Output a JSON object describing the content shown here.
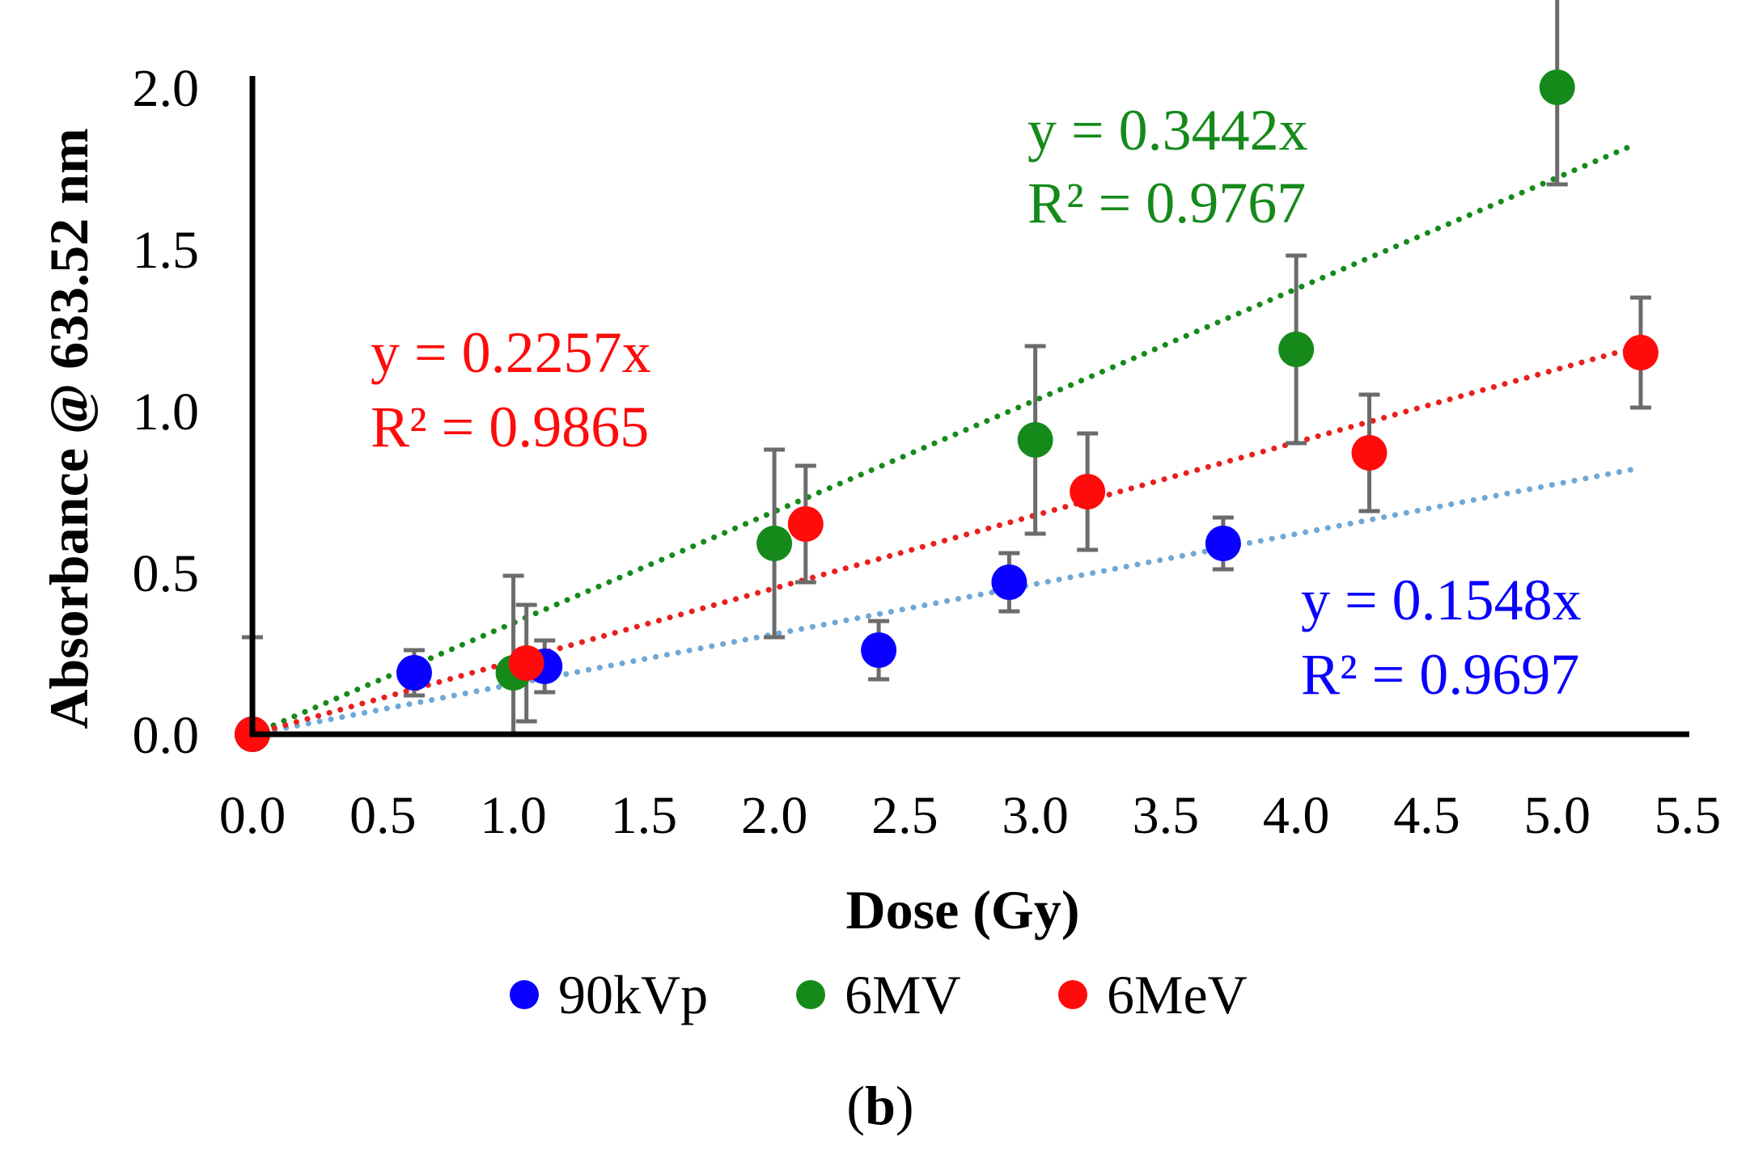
{
  "chart_data": {
    "type": "scatter",
    "xlabel": "Dose (Gy)",
    "ylabel": "Absorbance @ 633.52 nm",
    "xlim": [
      0.0,
      5.5
    ],
    "ylim": [
      0.0,
      2.0
    ],
    "x_ticks": [
      "0.0",
      "0.5",
      "1.0",
      "1.5",
      "2.0",
      "2.5",
      "3.0",
      "3.5",
      "4.0",
      "4.5",
      "5.0",
      "5.5"
    ],
    "y_ticks": [
      "0.0",
      "0.5",
      "1.0",
      "1.5",
      "2.0"
    ],
    "legend_position": "bottom",
    "panel_label": {
      "open": "(",
      "letter": "b",
      "close": ")"
    },
    "series": [
      {
        "name": "90kVp",
        "color": "#0a00ff",
        "trend_color": "#6fa8d6",
        "trend_slope": 0.1548,
        "trend_x_end": 5.3,
        "equation": "y = 0.1548x",
        "r2": "R² = 0.9697",
        "points": [
          {
            "x": 0.0,
            "y": 0.0,
            "err": 0.3
          },
          {
            "x": 0.62,
            "y": 0.19,
            "err": 0.07
          },
          {
            "x": 1.12,
            "y": 0.21,
            "err": 0.08
          },
          {
            "x": 2.4,
            "y": 0.26,
            "err": 0.09
          },
          {
            "x": 2.9,
            "y": 0.47,
            "err": 0.09
          },
          {
            "x": 3.72,
            "y": 0.59,
            "err": 0.08
          }
        ]
      },
      {
        "name": "6MV",
        "color": "#158a1a",
        "trend_color": "#158a1a",
        "trend_slope": 0.3442,
        "trend_x_end": 5.3,
        "equation": "y = 0.3442x",
        "r2": "R² = 0.9767",
        "points": [
          {
            "x": 0.0,
            "y": 0.0,
            "err": 0.0
          },
          {
            "x": 1.0,
            "y": 0.19,
            "err": 0.3
          },
          {
            "x": 2.0,
            "y": 0.59,
            "err": 0.29
          },
          {
            "x": 3.0,
            "y": 0.91,
            "err": 0.29
          },
          {
            "x": 4.0,
            "y": 1.19,
            "err": 0.29
          },
          {
            "x": 5.0,
            "y": 2.0,
            "err": 0.3
          }
        ]
      },
      {
        "name": "6MeV",
        "color": "#ff0b0b",
        "trend_color": "#e8201d",
        "trend_slope": 0.2257,
        "trend_x_end": 5.3,
        "equation": "y = 0.2257x",
        "r2": "R² = 0.9865",
        "points": [
          {
            "x": 0.0,
            "y": 0.0,
            "err": 0.0
          },
          {
            "x": 1.05,
            "y": 0.22,
            "err": 0.18
          },
          {
            "x": 2.12,
            "y": 0.65,
            "err": 0.18
          },
          {
            "x": 3.2,
            "y": 0.75,
            "err": 0.18
          },
          {
            "x": 4.28,
            "y": 0.87,
            "err": 0.18
          },
          {
            "x": 5.32,
            "y": 1.18,
            "err": 0.17
          }
        ]
      }
    ]
  }
}
